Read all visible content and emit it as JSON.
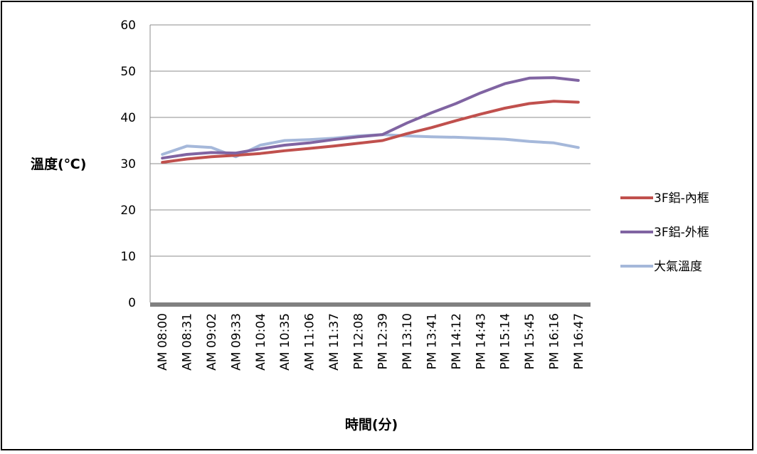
{
  "chart_data": {
    "type": "line",
    "title": "",
    "xlabel": "時間(分)",
    "ylabel": "溫度(℃)",
    "ylim": [
      0,
      60
    ],
    "yticks": [
      0,
      10,
      20,
      30,
      40,
      50,
      60
    ],
    "grid": true,
    "legend_position": "right",
    "x": [
      "AM 08:00",
      "AM 08:31",
      "AM 09:02",
      "AM 09:33",
      "AM 10:04",
      "AM 10:35",
      "AM 11:06",
      "AM 11:37",
      "PM 12:08",
      "PM 12:39",
      "PM 13:10",
      "PM 13:41",
      "PM 14:12",
      "PM 14:43",
      "PM 15:14",
      "PM 15:45",
      "PM 16:16",
      "PM 16:47"
    ],
    "series": [
      {
        "name": "3F鋁-內框",
        "color": "#C0504D",
        "values": [
          30.3,
          31.0,
          31.5,
          31.8,
          32.2,
          32.8,
          33.3,
          33.8,
          34.4,
          35.0,
          36.5,
          37.8,
          39.3,
          40.7,
          42.0,
          43.0,
          43.5,
          43.3
        ]
      },
      {
        "name": "3F鋁-外框",
        "color": "#8064A2",
        "values": [
          31.2,
          32.0,
          32.4,
          32.3,
          33.2,
          34.0,
          34.5,
          35.2,
          35.8,
          36.3,
          38.8,
          41.0,
          43.0,
          45.3,
          47.3,
          48.5,
          48.6,
          48.0
        ]
      },
      {
        "name": "大氣溫度",
        "color": "#A5B8DA",
        "values": [
          32.0,
          33.8,
          33.5,
          31.5,
          34.0,
          35.0,
          35.2,
          35.5,
          36.0,
          36.3,
          36.0,
          35.8,
          35.7,
          35.5,
          35.3,
          34.8,
          34.5,
          33.5
        ]
      }
    ]
  }
}
